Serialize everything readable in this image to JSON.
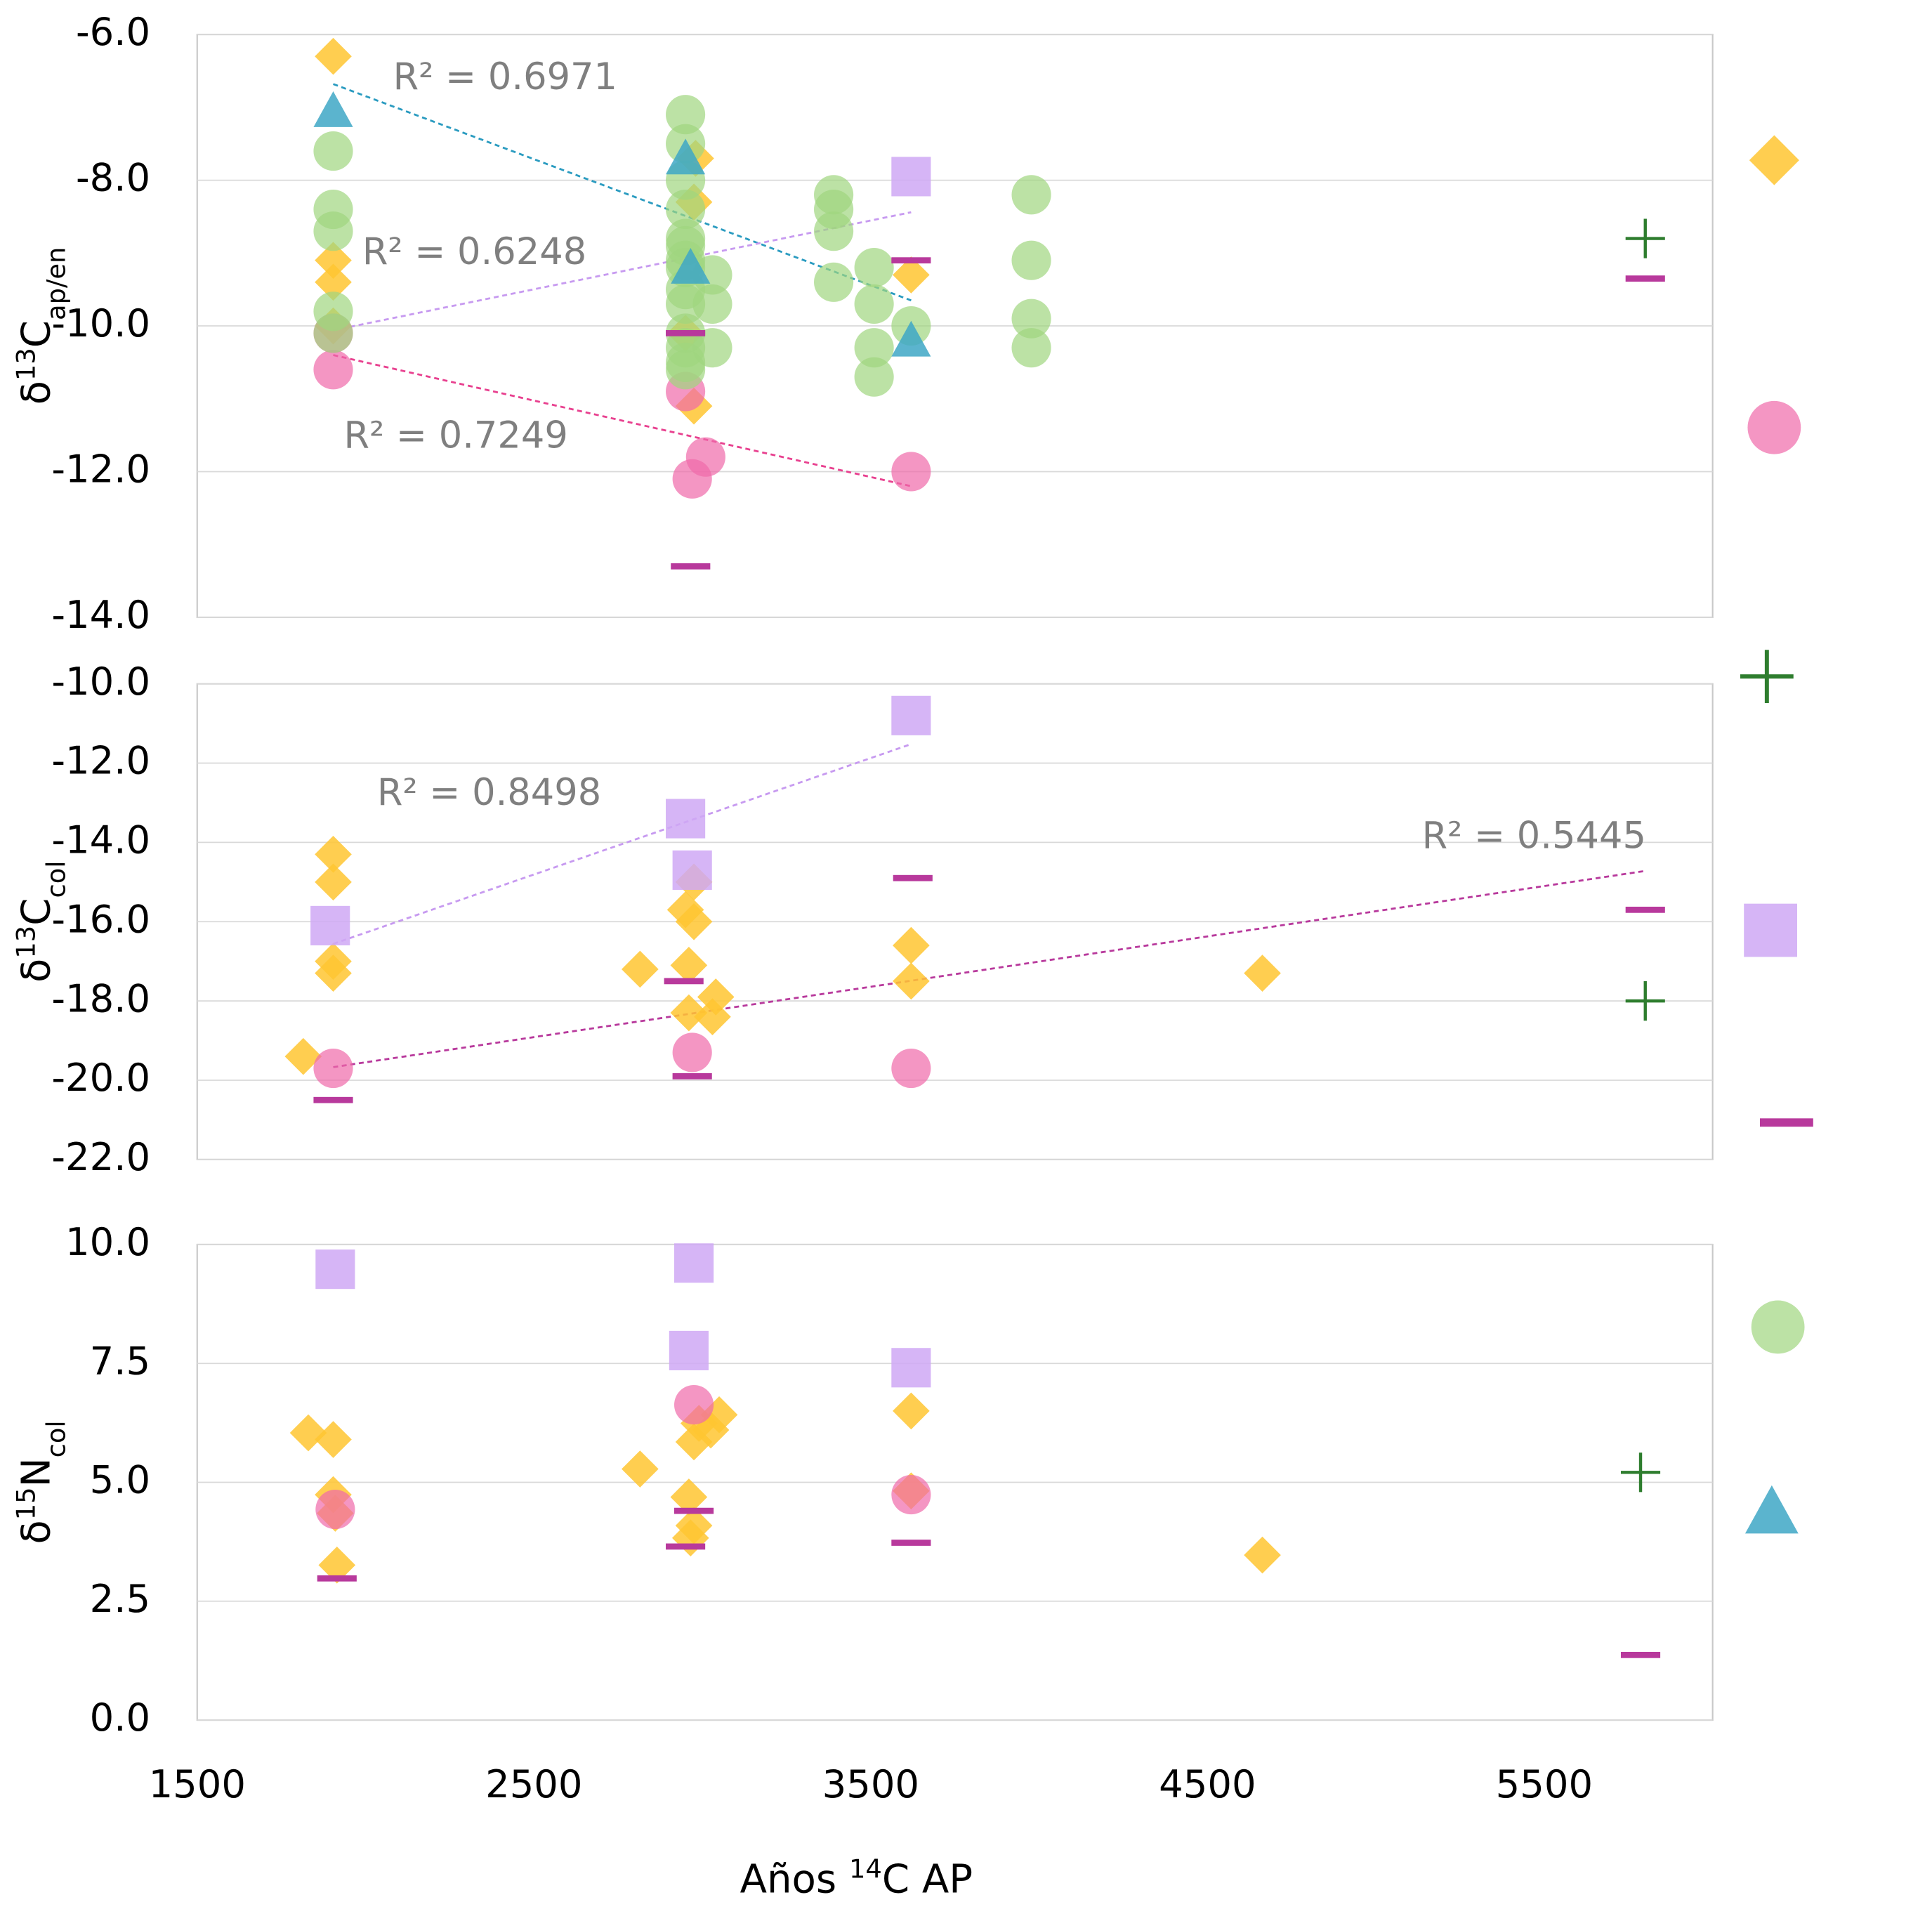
{
  "chart_data": [
    {
      "type": "scatter",
      "ylabel": [
        "δ",
        "13",
        "C",
        "ap/en"
      ],
      "xlim": [
        1500,
        6000
      ],
      "ylim": [
        -14,
        -6
      ],
      "yticks": [
        {
          "value": -6,
          "label": "-6.0"
        },
        {
          "value": -8,
          "label": "-8.0"
        },
        {
          "value": -10,
          "label": "-10.0"
        },
        {
          "value": -12,
          "label": "-12.0"
        },
        {
          "value": -14,
          "label": "-14.0"
        }
      ],
      "grid": true,
      "series": [
        {
          "marker": "diamond",
          "color": "#ffc531",
          "x": [
            1904,
            1904,
            1904,
            1904,
            2980,
            2975,
            2950,
            2975,
            3620
          ],
          "y": [
            -6.3,
            -9.1,
            -9.4,
            -10.0,
            -7.7,
            -8.3,
            -10.1,
            -11.1,
            -9.3
          ]
        },
        {
          "marker": "circle",
          "color": "#f06aaa",
          "x": [
            1904,
            1904,
            2950,
            2970,
            3010,
            3620
          ],
          "y": [
            -10.1,
            -10.6,
            -10.9,
            -12.1,
            -11.8,
            -12.0
          ]
        },
        {
          "marker": "circle",
          "color": "#9fd67f",
          "x": [
            1904,
            1904,
            1904,
            1904,
            1904,
            2950,
            2950,
            2950,
            2950,
            2950,
            2950,
            2950,
            2950,
            2950,
            2950,
            2950,
            2950,
            2950,
            2950,
            3030,
            3030,
            3030,
            3390,
            3390,
            3390,
            3390,
            3510,
            3510,
            3510,
            3510,
            3620,
            3977,
            3977,
            3977,
            3977
          ],
          "y": [
            -7.6,
            -8.4,
            -8.7,
            -9.8,
            -10.1,
            -7.1,
            -7.5,
            -8.0,
            -8.4,
            -8.8,
            -8.9,
            -9.1,
            -9.2,
            -9.5,
            -9.7,
            -10.1,
            -10.3,
            -10.5,
            -10.6,
            -9.3,
            -9.7,
            -10.3,
            -8.2,
            -8.4,
            -8.7,
            -9.4,
            -9.2,
            -9.7,
            -10.3,
            -10.7,
            -10.0,
            -8.2,
            -9.1,
            -9.9,
            -10.3
          ]
        },
        {
          "marker": "triangle",
          "color": "#3ea7c6",
          "x": [
            1904,
            2950,
            2965,
            3620
          ],
          "y": [
            -7.05,
            -7.7,
            -9.2,
            -10.2
          ]
        },
        {
          "marker": "square",
          "color": "#cfa8f5",
          "x": [
            3620
          ],
          "y": [
            -7.95
          ]
        },
        {
          "marker": "dash",
          "color": "#b8399c",
          "x": [
            2950,
            2965,
            3620,
            5800
          ],
          "y": [
            -10.1,
            -13.3,
            -9.1,
            -9.35
          ]
        },
        {
          "marker": "plus",
          "color": "#2e7d2e",
          "x": [
            5800
          ],
          "y": [
            -8.8
          ]
        }
      ],
      "trendlines": [
        {
          "color": "#2a9bc0",
          "x": [
            1904,
            3620
          ],
          "y": [
            -6.68,
            -9.65
          ],
          "label": "R² = 0.6971"
        },
        {
          "color": "#c79af0",
          "x": [
            1904,
            3620
          ],
          "y": [
            -10.06,
            -8.44
          ],
          "label": "R² = 0.6248"
        },
        {
          "color": "#e8408f",
          "x": [
            1904,
            3620
          ],
          "y": [
            -10.4,
            -12.2
          ],
          "label": "R² = 0.7249"
        }
      ]
    },
    {
      "type": "scatter",
      "ylabel": [
        "δ",
        "13",
        "C",
        "col"
      ],
      "xlim": [
        1500,
        6000
      ],
      "ylim": [
        -22,
        -10
      ],
      "yticks": [
        {
          "value": -10,
          "label": "-10.0"
        },
        {
          "value": -12,
          "label": "-12.0"
        },
        {
          "value": -14,
          "label": "-14.0"
        },
        {
          "value": -16,
          "label": "-16.0"
        },
        {
          "value": -18,
          "label": "-18.0"
        },
        {
          "value": -20,
          "label": "-20.0"
        },
        {
          "value": -22,
          "label": "-22.0"
        }
      ],
      "grid": true,
      "series": [
        {
          "marker": "diamond",
          "color": "#ffc531",
          "x": [
            1904,
            1904,
            1904,
            1904,
            1815,
            2815,
            2975,
            2950,
            2975,
            2960,
            2960,
            3040,
            3030,
            3620,
            3620,
            4663
          ],
          "y": [
            -14.3,
            -15.0,
            -17.0,
            -17.3,
            -19.4,
            -17.2,
            -15.0,
            -15.7,
            -16.0,
            -17.1,
            -18.3,
            -17.9,
            -18.4,
            -16.6,
            -17.5,
            -17.3
          ]
        },
        {
          "marker": "circle",
          "color": "#f06aaa",
          "x": [
            1904,
            2970,
            3620
          ],
          "y": [
            -19.7,
            -19.3,
            -19.7
          ]
        },
        {
          "marker": "square",
          "color": "#cfa8f5",
          "x": [
            1895,
            2950,
            2970,
            3620
          ],
          "y": [
            -16.1,
            -13.4,
            -14.7,
            -10.8
          ]
        },
        {
          "marker": "dash",
          "color": "#b8399c",
          "x": [
            1904,
            2945,
            2970,
            3625,
            5800
          ],
          "y": [
            -20.5,
            -17.5,
            -19.9,
            -14.9,
            -15.7
          ]
        },
        {
          "marker": "plus",
          "color": "#2e7d2e",
          "x": [
            5800
          ],
          "y": [
            -18.0
          ]
        }
      ],
      "trendlines": [
        {
          "color": "#c79af0",
          "x": [
            1904,
            3620
          ],
          "y": [
            -16.56,
            -11.52
          ],
          "label": "R² = 0.8498"
        },
        {
          "color": "#b8399c",
          "x": [
            1904,
            5800
          ],
          "y": [
            -19.67,
            -14.72
          ],
          "label": "R² = 0.5445"
        }
      ]
    },
    {
      "type": "scatter",
      "ylabel": [
        "δ",
        "15",
        "N",
        "col"
      ],
      "xlabel": [
        "Años ",
        "14",
        "C AP"
      ],
      "xlim": [
        1500,
        6000
      ],
      "ylim": [
        0,
        10
      ],
      "xticks": [
        1500,
        2500,
        3500,
        4500,
        5500
      ],
      "yticks": [
        {
          "value": 10,
          "label": "10.0"
        },
        7.5,
        {
          "value": 5,
          "label": "5.0"
        },
        2.5,
        {
          "value": 0,
          "label": "0.0"
        }
      ],
      "grid": true,
      "series": [
        {
          "marker": "diamond",
          "color": "#ffc531",
          "x": [
            1830,
            1904,
            1904,
            1910,
            1915,
            2815,
            2960,
            2975,
            2965,
            2975,
            2990,
            3050,
            3025,
            3620,
            3620,
            4663
          ],
          "y": [
            6.04,
            5.9,
            4.74,
            4.35,
            3.26,
            5.28,
            4.69,
            4.09,
            3.83,
            5.85,
            6.24,
            6.42,
            6.1,
            6.5,
            4.82,
            3.47
          ]
        },
        {
          "marker": "circle",
          "color": "#f06aaa",
          "x": [
            1910,
            2975,
            3620
          ],
          "y": [
            4.43,
            6.63,
            4.74
          ]
        },
        {
          "marker": "square",
          "color": "#cfa8f5",
          "x": [
            1910,
            2975,
            2960,
            3620
          ],
          "y": [
            9.48,
            9.61,
            7.77,
            7.41
          ]
        },
        {
          "marker": "dash",
          "color": "#b8399c",
          "x": [
            1915,
            2975,
            2950,
            3620,
            5786
          ],
          "y": [
            2.98,
            4.4,
            3.65,
            3.73,
            1.37
          ]
        },
        {
          "marker": "plus",
          "color": "#2e7d2e",
          "x": [
            5786
          ],
          "y": [
            5.21
          ]
        }
      ]
    }
  ]
}
